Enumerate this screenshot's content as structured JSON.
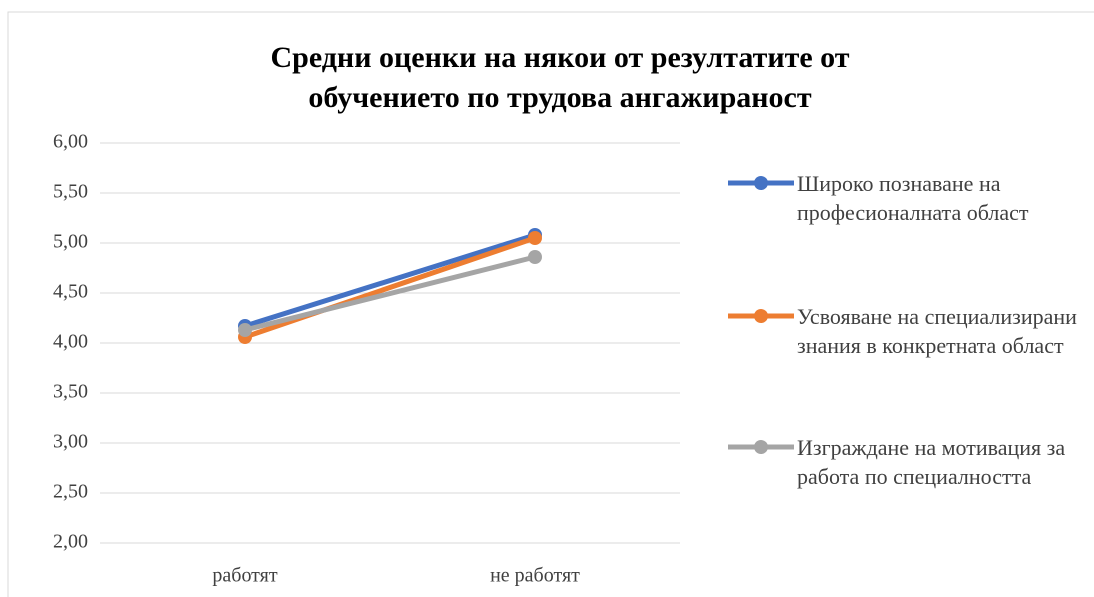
{
  "chart_data": {
    "type": "line",
    "title": "Средни оценки на някои от резултатите от обучението по трудова ангажираност",
    "categories": [
      "работят",
      "не работят"
    ],
    "series": [
      {
        "name": "Широко познаване на професионалната област",
        "color": "#4472c4",
        "values": [
          4.17,
          5.08
        ]
      },
      {
        "name": "Усвояване на специализирани знания в конкретната област",
        "color": "#ed7d31",
        "values": [
          4.06,
          5.05
        ]
      },
      {
        "name": "Изграждане на мотивация за работа по специалността",
        "color": "#a5a5a5",
        "values": [
          4.13,
          4.86
        ]
      }
    ],
    "ylim": [
      2,
      6
    ],
    "yticks": [
      {
        "value": 2,
        "label": "2,00"
      },
      {
        "value": 2.5,
        "label": "2,50"
      },
      {
        "value": 3,
        "label": "3,00"
      },
      {
        "value": 3.5,
        "label": "3,50"
      },
      {
        "value": 4,
        "label": "4,00"
      },
      {
        "value": 4.5,
        "label": "4,50"
      },
      {
        "value": 5,
        "label": "5,00"
      },
      {
        "value": 5.5,
        "label": "5,50"
      },
      {
        "value": 6,
        "label": "6,00"
      }
    ],
    "grid": true,
    "legend": "right"
  }
}
